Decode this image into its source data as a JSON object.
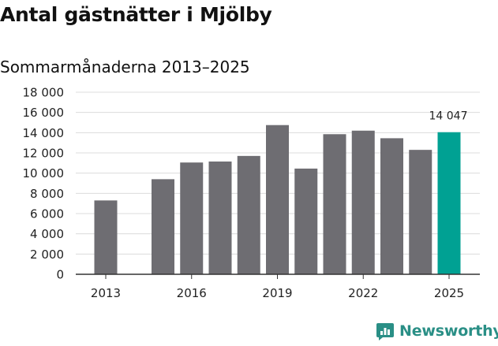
{
  "header": {
    "title": "Antal gästnätter i Mjölby",
    "subtitle": "Sommarmånaderna 2013–2025"
  },
  "brand": {
    "name": "Newsworthy"
  },
  "chart_data": {
    "type": "bar",
    "categories": [
      "2013",
      "2014",
      "2015",
      "2016",
      "2017",
      "2018",
      "2019",
      "2020",
      "2021",
      "2022",
      "2023",
      "2024",
      "2025"
    ],
    "values": [
      7300,
      null,
      9400,
      11050,
      11150,
      11700,
      14750,
      10450,
      13850,
      14200,
      13450,
      12300,
      14047
    ],
    "x_tick_labels": [
      "2013",
      "2016",
      "2019",
      "2022",
      "2025"
    ],
    "y_ticks": [
      0,
      2000,
      4000,
      6000,
      8000,
      10000,
      12000,
      14000,
      16000,
      18000
    ],
    "y_tick_labels": [
      "0",
      "2 000",
      "4 000",
      "6 000",
      "8 000",
      "10 000",
      "12 000",
      "14 000",
      "16 000",
      "18 000"
    ],
    "ylim": [
      0,
      18000
    ],
    "grid": true,
    "highlight_index": 12,
    "data_label": {
      "index": 12,
      "text": "14 047"
    },
    "colors": {
      "bar": "#6e6d72",
      "highlight": "#00a193",
      "grid": "#dcdcdc",
      "axis": "#333333"
    }
  }
}
